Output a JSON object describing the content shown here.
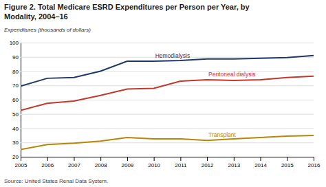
{
  "chart_data": {
    "type": "line",
    "title": [
      "Figure 2. Total Medicare ESRD Expenditures per Person per Year, by",
      "Modality, 2004–16"
    ],
    "y_label": "Expenditures (thousands of dollars)",
    "annotations": [
      "Source: United States Renal Data System."
    ],
    "x": [
      2005,
      2006,
      2007,
      2008,
      2009,
      2010,
      2011,
      2012,
      2013,
      2014,
      2015,
      2016
    ],
    "series": [
      {
        "name": "Hemodialysis",
        "color": "#1f3864",
        "values": [
          69.5,
          75.0,
          75.5,
          80.0,
          87.0,
          87.0,
          87.5,
          88.5,
          88.5,
          89.0,
          89.5,
          91.0
        ]
      },
      {
        "name": "Peritoneal dialysis",
        "color": "#c0392b",
        "values": [
          52.5,
          57.5,
          59.0,
          63.0,
          67.5,
          68.0,
          73.0,
          74.0,
          73.5,
          74.0,
          75.5,
          76.5
        ]
      },
      {
        "name": "Transplant",
        "color": "#b5860a",
        "values": [
          25.0,
          28.5,
          29.5,
          31.0,
          33.5,
          32.5,
          32.5,
          31.5,
          32.5,
          33.5,
          34.5,
          35.0
        ]
      }
    ],
    "xlim": [
      2005,
      2016
    ],
    "xticks": [
      2005,
      2006,
      2007,
      2008,
      2009,
      2010,
      2011,
      2012,
      2013,
      2014,
      2015,
      2016
    ],
    "ylim": [
      20,
      100
    ],
    "yticks": [
      20,
      30,
      40,
      50,
      60,
      70,
      80,
      90,
      100
    ],
    "grid": true
  }
}
